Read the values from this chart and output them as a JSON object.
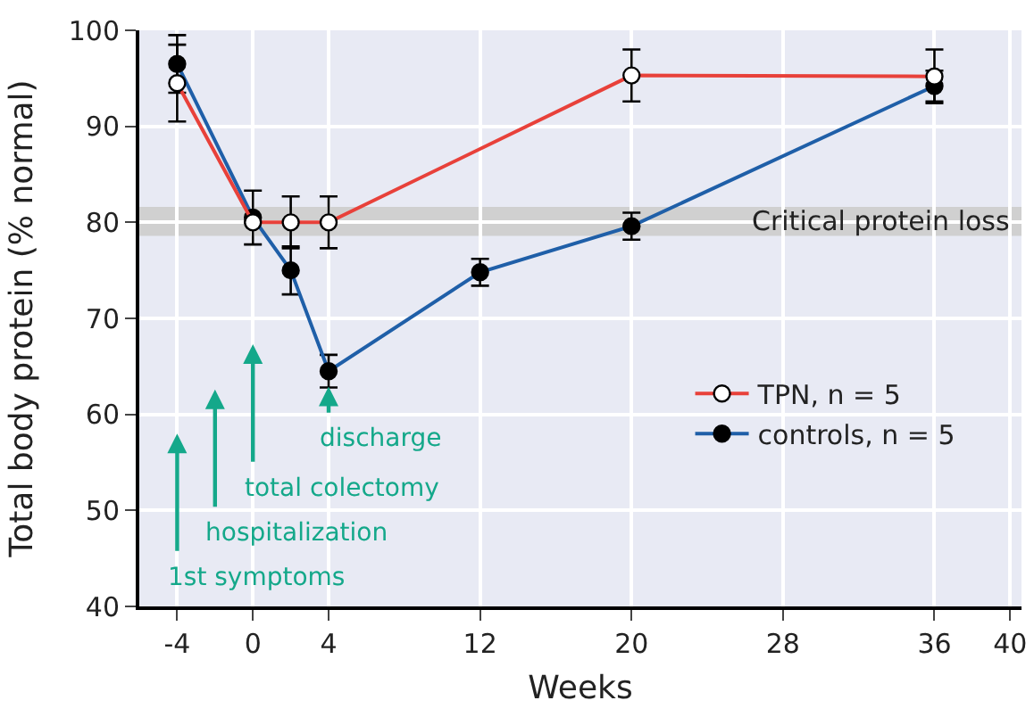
{
  "chart_data": {
    "type": "line",
    "xlabel": "Weeks",
    "ylabel": "Total body protein (% normal)",
    "xlim": [
      -6,
      40.6
    ],
    "xticks": [
      -4,
      0,
      4,
      12,
      20,
      28,
      36,
      40
    ],
    "ylim": [
      40,
      100
    ],
    "yticks": [
      40,
      50,
      60,
      70,
      80,
      90,
      100
    ],
    "grid": true,
    "legend": "bottom right",
    "marker": "circle",
    "series": [
      {
        "name": "TPN, n = 5",
        "color": "#e8413a",
        "x": [
          -4,
          0,
          2,
          4,
          20,
          36
        ],
        "values": [
          94.5,
          80,
          80,
          80,
          95.3,
          95.2
        ],
        "errors": [
          4,
          null,
          2.7,
          2.7,
          2.7,
          2.8
        ]
      },
      {
        "name": "controls, n = 5",
        "color": "#1f5fa8",
        "x": [
          -4,
          0,
          2,
          4,
          12,
          20,
          36
        ],
        "values": [
          96.5,
          80.5,
          75,
          64.5,
          74.8,
          79.6,
          94.2
        ],
        "errors": [
          3,
          2.8,
          2.5,
          1.7,
          1.4,
          1.4,
          1.6
        ]
      }
    ],
    "bands": [
      {
        "axis": "y",
        "from": 78.6,
        "to": 81.6,
        "label": "Critical protein loss",
        "color": "#d0d0d0"
      }
    ],
    "annotations": [
      "1st symptoms",
      "hospitalization",
      "total colectomy",
      "discharge"
    ]
  }
}
